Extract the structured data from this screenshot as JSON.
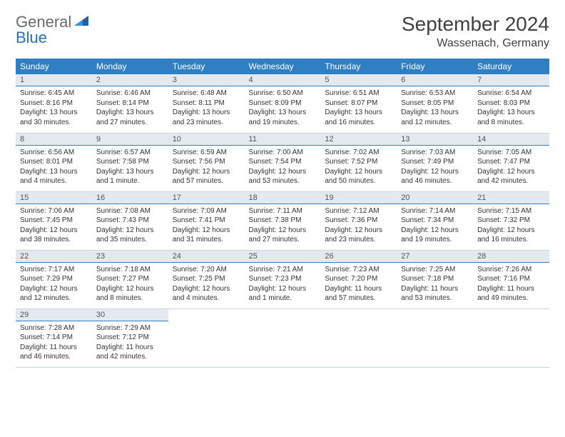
{
  "brand": {
    "part1": "General",
    "part2": "Blue"
  },
  "title": "September 2024",
  "location": "Wassenach, Germany",
  "colors": {
    "header_bg": "#2f7fc2",
    "header_text": "#ffffff",
    "daynum_bg": "#e3e9ee",
    "row_divider": "#2f7fc2",
    "brand_gray": "#6a6a6a",
    "brand_blue": "#2970b8"
  },
  "weekdays": [
    "Sunday",
    "Monday",
    "Tuesday",
    "Wednesday",
    "Thursday",
    "Friday",
    "Saturday"
  ],
  "weeks": [
    [
      {
        "n": "1",
        "sr": "Sunrise: 6:45 AM",
        "ss": "Sunset: 8:16 PM",
        "dl": "Daylight: 13 hours and 30 minutes."
      },
      {
        "n": "2",
        "sr": "Sunrise: 6:46 AM",
        "ss": "Sunset: 8:14 PM",
        "dl": "Daylight: 13 hours and 27 minutes."
      },
      {
        "n": "3",
        "sr": "Sunrise: 6:48 AM",
        "ss": "Sunset: 8:11 PM",
        "dl": "Daylight: 13 hours and 23 minutes."
      },
      {
        "n": "4",
        "sr": "Sunrise: 6:50 AM",
        "ss": "Sunset: 8:09 PM",
        "dl": "Daylight: 13 hours and 19 minutes."
      },
      {
        "n": "5",
        "sr": "Sunrise: 6:51 AM",
        "ss": "Sunset: 8:07 PM",
        "dl": "Daylight: 13 hours and 16 minutes."
      },
      {
        "n": "6",
        "sr": "Sunrise: 6:53 AM",
        "ss": "Sunset: 8:05 PM",
        "dl": "Daylight: 13 hours and 12 minutes."
      },
      {
        "n": "7",
        "sr": "Sunrise: 6:54 AM",
        "ss": "Sunset: 8:03 PM",
        "dl": "Daylight: 13 hours and 8 minutes."
      }
    ],
    [
      {
        "n": "8",
        "sr": "Sunrise: 6:56 AM",
        "ss": "Sunset: 8:01 PM",
        "dl": "Daylight: 13 hours and 4 minutes."
      },
      {
        "n": "9",
        "sr": "Sunrise: 6:57 AM",
        "ss": "Sunset: 7:58 PM",
        "dl": "Daylight: 13 hours and 1 minute."
      },
      {
        "n": "10",
        "sr": "Sunrise: 6:59 AM",
        "ss": "Sunset: 7:56 PM",
        "dl": "Daylight: 12 hours and 57 minutes."
      },
      {
        "n": "11",
        "sr": "Sunrise: 7:00 AM",
        "ss": "Sunset: 7:54 PM",
        "dl": "Daylight: 12 hours and 53 minutes."
      },
      {
        "n": "12",
        "sr": "Sunrise: 7:02 AM",
        "ss": "Sunset: 7:52 PM",
        "dl": "Daylight: 12 hours and 50 minutes."
      },
      {
        "n": "13",
        "sr": "Sunrise: 7:03 AM",
        "ss": "Sunset: 7:49 PM",
        "dl": "Daylight: 12 hours and 46 minutes."
      },
      {
        "n": "14",
        "sr": "Sunrise: 7:05 AM",
        "ss": "Sunset: 7:47 PM",
        "dl": "Daylight: 12 hours and 42 minutes."
      }
    ],
    [
      {
        "n": "15",
        "sr": "Sunrise: 7:06 AM",
        "ss": "Sunset: 7:45 PM",
        "dl": "Daylight: 12 hours and 38 minutes."
      },
      {
        "n": "16",
        "sr": "Sunrise: 7:08 AM",
        "ss": "Sunset: 7:43 PM",
        "dl": "Daylight: 12 hours and 35 minutes."
      },
      {
        "n": "17",
        "sr": "Sunrise: 7:09 AM",
        "ss": "Sunset: 7:41 PM",
        "dl": "Daylight: 12 hours and 31 minutes."
      },
      {
        "n": "18",
        "sr": "Sunrise: 7:11 AM",
        "ss": "Sunset: 7:38 PM",
        "dl": "Daylight: 12 hours and 27 minutes."
      },
      {
        "n": "19",
        "sr": "Sunrise: 7:12 AM",
        "ss": "Sunset: 7:36 PM",
        "dl": "Daylight: 12 hours and 23 minutes."
      },
      {
        "n": "20",
        "sr": "Sunrise: 7:14 AM",
        "ss": "Sunset: 7:34 PM",
        "dl": "Daylight: 12 hours and 19 minutes."
      },
      {
        "n": "21",
        "sr": "Sunrise: 7:15 AM",
        "ss": "Sunset: 7:32 PM",
        "dl": "Daylight: 12 hours and 16 minutes."
      }
    ],
    [
      {
        "n": "22",
        "sr": "Sunrise: 7:17 AM",
        "ss": "Sunset: 7:29 PM",
        "dl": "Daylight: 12 hours and 12 minutes."
      },
      {
        "n": "23",
        "sr": "Sunrise: 7:18 AM",
        "ss": "Sunset: 7:27 PM",
        "dl": "Daylight: 12 hours and 8 minutes."
      },
      {
        "n": "24",
        "sr": "Sunrise: 7:20 AM",
        "ss": "Sunset: 7:25 PM",
        "dl": "Daylight: 12 hours and 4 minutes."
      },
      {
        "n": "25",
        "sr": "Sunrise: 7:21 AM",
        "ss": "Sunset: 7:23 PM",
        "dl": "Daylight: 12 hours and 1 minute."
      },
      {
        "n": "26",
        "sr": "Sunrise: 7:23 AM",
        "ss": "Sunset: 7:20 PM",
        "dl": "Daylight: 11 hours and 57 minutes."
      },
      {
        "n": "27",
        "sr": "Sunrise: 7:25 AM",
        "ss": "Sunset: 7:18 PM",
        "dl": "Daylight: 11 hours and 53 minutes."
      },
      {
        "n": "28",
        "sr": "Sunrise: 7:26 AM",
        "ss": "Sunset: 7:16 PM",
        "dl": "Daylight: 11 hours and 49 minutes."
      }
    ],
    [
      {
        "n": "29",
        "sr": "Sunrise: 7:28 AM",
        "ss": "Sunset: 7:14 PM",
        "dl": "Daylight: 11 hours and 46 minutes."
      },
      {
        "n": "30",
        "sr": "Sunrise: 7:29 AM",
        "ss": "Sunset: 7:12 PM",
        "dl": "Daylight: 11 hours and 42 minutes."
      },
      null,
      null,
      null,
      null,
      null
    ]
  ]
}
